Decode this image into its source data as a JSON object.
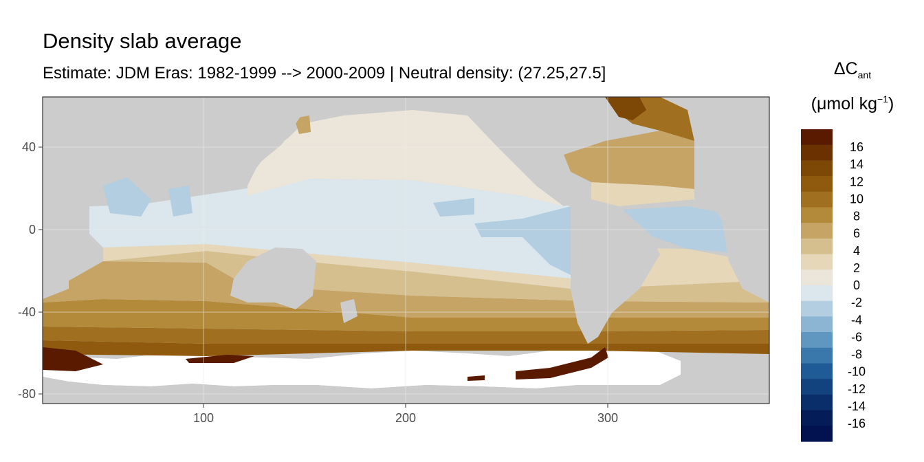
{
  "header": {
    "title": "Density slab average",
    "subtitle": "Estimate: JDM Eras: 1982-1999 --> 2000-2009 | Neutral density: (27.25,27.5]"
  },
  "legend": {
    "title_main": "ΔC",
    "title_sub": "ant",
    "unit_open": "(μmol kg",
    "unit_sup": "−1",
    "unit_close": ")",
    "labels": [
      "16",
      "14",
      "12",
      "10",
      "8",
      "6",
      "4",
      "2",
      "0",
      "-2",
      "-4",
      "-6",
      "-8",
      "-10",
      "-12",
      "-14",
      "-16"
    ],
    "colors": [
      "#5a1a00",
      "#6b3200",
      "#7d4805",
      "#8f5a0d",
      "#a06f1f",
      "#b38a3a",
      "#c6a466",
      "#d6bf8f",
      "#e6d7b8",
      "#ece6da",
      "#dbe6ed",
      "#b2cee0",
      "#8bb5d3",
      "#5f97c0",
      "#3a78ab",
      "#1f5b96",
      "#12437f",
      "#0a2e6a",
      "#041c58",
      "#021250"
    ]
  },
  "axes": {
    "x_ticks": [
      "100",
      "200",
      "300"
    ],
    "y_ticks": [
      "40",
      "0",
      "-40",
      "-80"
    ],
    "x_values": [
      100,
      200,
      300
    ],
    "y_values": [
      40,
      0,
      -40,
      -80
    ],
    "xlim": [
      20,
      380
    ],
    "ylim": [
      -85,
      65
    ]
  },
  "colors": {
    "land": "#cccccc",
    "no_data": "#ffffff",
    "panel_border": "#333333",
    "grid": "#ebebeb"
  }
}
